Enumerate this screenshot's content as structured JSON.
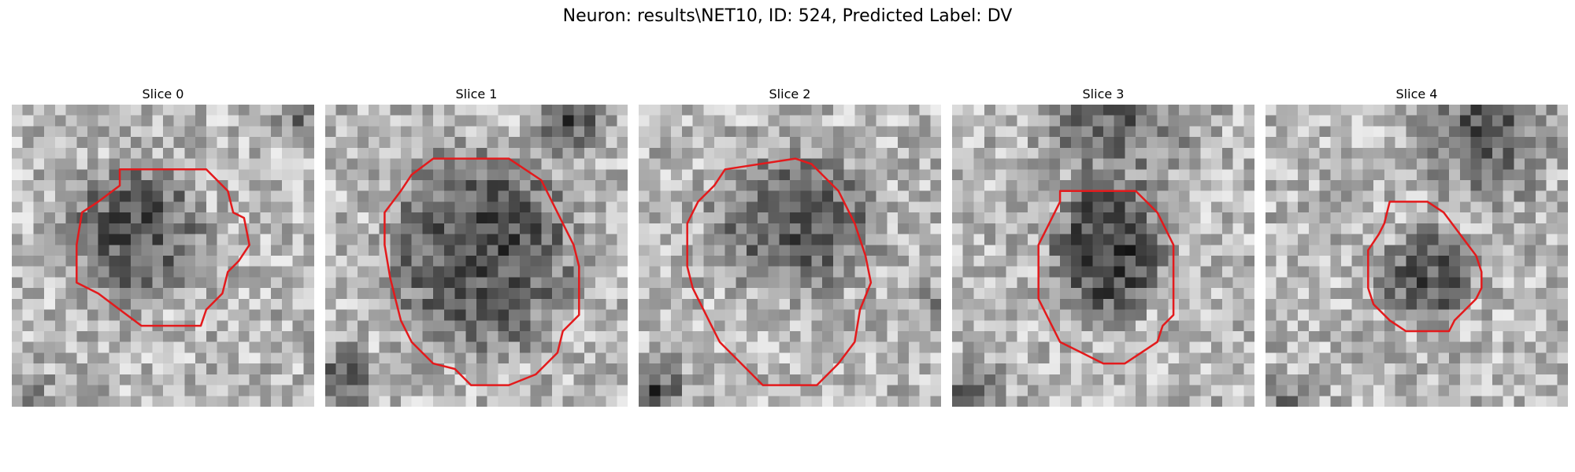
{
  "figure": {
    "title": "Neuron: results\\NET10, ID: 524, Predicted Label: DV"
  },
  "panels": [
    {
      "title": "Slice 0"
    },
    {
      "title": "Slice 1"
    },
    {
      "title": "Slice 2"
    },
    {
      "title": "Slice 3"
    },
    {
      "title": "Slice 4"
    }
  ],
  "colors": {
    "contour": "#e31a1c",
    "background": "#ffffff"
  },
  "image": {
    "colormap": "grayscale",
    "grid": "28x28 pixels per slice"
  }
}
